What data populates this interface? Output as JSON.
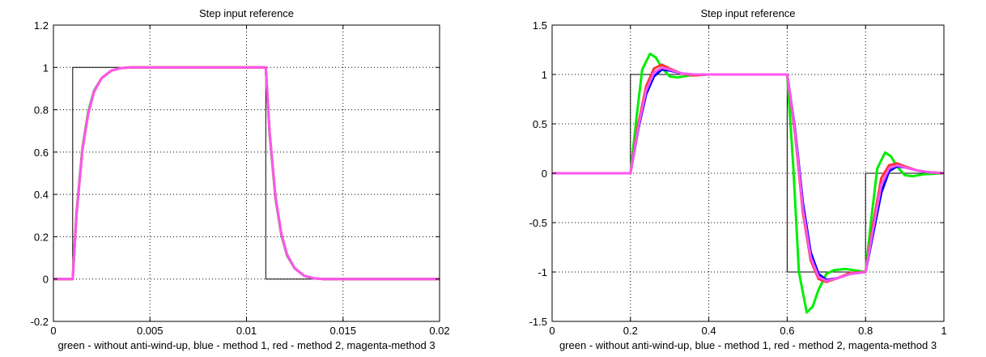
{
  "chart_data": [
    {
      "type": "line",
      "title": "Step input reference",
      "xlabel": "green - without anti-wind-up, blue - method 1, red - method 2, magenta-method 3",
      "ylabel": "",
      "xlim": [
        0,
        0.02
      ],
      "ylim": [
        -0.2,
        1.2
      ],
      "xticks": [
        0,
        0.005,
        0.01,
        0.015,
        0.02
      ],
      "xtick_labels": [
        "0",
        "0.005",
        "0.01",
        "0.015",
        "0.02"
      ],
      "yticks": [
        -0.2,
        0,
        0.2,
        0.4,
        0.6,
        0.8,
        1,
        1.2
      ],
      "ytick_labels": [
        "-0.2",
        "0",
        "0.2",
        "0.4",
        "0.6",
        "0.8",
        "1",
        "1.2"
      ],
      "grid": true,
      "series": [
        {
          "color": "#000000",
          "width": 1,
          "x": [
            0,
            0.001,
            0.001,
            0.011,
            0.011,
            0.02
          ],
          "y": [
            0,
            0,
            1,
            1,
            0,
            0
          ]
        },
        {
          "color": "#00ee00",
          "width": 3,
          "x": [
            0,
            0.001,
            0.0012,
            0.0015,
            0.0018,
            0.0021,
            0.0025,
            0.003,
            0.0035,
            0.004,
            0.011,
            0.0112,
            0.0115,
            0.0118,
            0.0121,
            0.0125,
            0.013,
            0.0135,
            0.014,
            0.02
          ],
          "y": [
            0,
            0,
            0.32,
            0.62,
            0.79,
            0.89,
            0.95,
            0.985,
            0.997,
            1,
            1,
            0.68,
            0.38,
            0.21,
            0.11,
            0.05,
            0.015,
            0.003,
            0,
            0
          ]
        },
        {
          "color": "#0000ff",
          "width": 2,
          "x": [
            0,
            0.001,
            0.0012,
            0.0015,
            0.0018,
            0.0021,
            0.0025,
            0.003,
            0.0035,
            0.004,
            0.011,
            0.0112,
            0.0115,
            0.0118,
            0.0121,
            0.0125,
            0.013,
            0.0135,
            0.014,
            0.02
          ],
          "y": [
            0,
            0,
            0.3,
            0.6,
            0.78,
            0.88,
            0.95,
            0.985,
            0.997,
            1,
            1,
            0.7,
            0.4,
            0.22,
            0.12,
            0.05,
            0.015,
            0.003,
            0,
            0
          ]
        },
        {
          "color": "#ff3030",
          "width": 3,
          "x": [
            0,
            0.001,
            0.0012,
            0.0015,
            0.0018,
            0.0021,
            0.0025,
            0.003,
            0.0035,
            0.004,
            0.011,
            0.0112,
            0.0115,
            0.0118,
            0.0121,
            0.0125,
            0.013,
            0.0135,
            0.014,
            0.02
          ],
          "y": [
            0,
            0,
            0.31,
            0.61,
            0.78,
            0.885,
            0.95,
            0.985,
            0.997,
            1,
            1,
            0.69,
            0.39,
            0.215,
            0.115,
            0.05,
            0.015,
            0.003,
            0,
            0
          ]
        },
        {
          "color": "#ff55ee",
          "width": 3,
          "x": [
            0,
            0.001,
            0.0012,
            0.0015,
            0.0018,
            0.0021,
            0.0025,
            0.003,
            0.0035,
            0.004,
            0.011,
            0.0112,
            0.0115,
            0.0118,
            0.0121,
            0.0125,
            0.013,
            0.0135,
            0.014,
            0.02
          ],
          "y": [
            0,
            0,
            0.31,
            0.61,
            0.78,
            0.885,
            0.95,
            0.985,
            0.997,
            1,
            1,
            0.69,
            0.39,
            0.215,
            0.115,
            0.05,
            0.015,
            0.003,
            0,
            0
          ]
        }
      ]
    },
    {
      "type": "line",
      "title": "Step input reference",
      "xlabel": "green - without anti-wind-up, blue - method 1, red - method 2, magenta-method 3",
      "ylabel": "",
      "xlim": [
        0,
        1
      ],
      "ylim": [
        -1.5,
        1.5
      ],
      "xticks": [
        0,
        0.2,
        0.4,
        0.6,
        0.8,
        1
      ],
      "xtick_labels": [
        "0",
        "0.2",
        "0.4",
        "0.6",
        "0.8",
        "1"
      ],
      "yticks": [
        -1.5,
        -1,
        -0.5,
        0,
        0.5,
        1,
        1.5
      ],
      "ytick_labels": [
        "-1.5",
        "-1",
        "-0.5",
        "0",
        "0.5",
        "1",
        "1.5"
      ],
      "grid": true,
      "series": [
        {
          "color": "#000000",
          "width": 1,
          "x": [
            0,
            0.2,
            0.2,
            0.6,
            0.6,
            0.8,
            0.8,
            1
          ],
          "y": [
            0,
            0,
            1,
            1,
            -1,
            -1,
            0,
            0
          ]
        },
        {
          "color": "#00ee00",
          "width": 3,
          "x": [
            0,
            0.2,
            0.215,
            0.23,
            0.25,
            0.265,
            0.28,
            0.3,
            0.32,
            0.35,
            0.4,
            0.6,
            0.615,
            0.63,
            0.65,
            0.665,
            0.68,
            0.7,
            0.72,
            0.75,
            0.8,
            0.815,
            0.83,
            0.85,
            0.865,
            0.88,
            0.9,
            0.92,
            0.95,
            1
          ],
          "y": [
            0,
            0,
            0.55,
            1.05,
            1.21,
            1.17,
            1.07,
            0.98,
            0.97,
            0.99,
            1,
            1,
            0.1,
            -1.0,
            -1.41,
            -1.35,
            -1.18,
            -1.02,
            -0.98,
            -0.97,
            -1,
            -0.45,
            0.05,
            0.21,
            0.17,
            0.07,
            -0.02,
            -0.03,
            -0.01,
            0
          ]
        },
        {
          "color": "#0000ff",
          "width": 3,
          "x": [
            0,
            0.2,
            0.22,
            0.24,
            0.26,
            0.28,
            0.3,
            0.33,
            0.36,
            0.4,
            0.6,
            0.62,
            0.64,
            0.66,
            0.68,
            0.7,
            0.73,
            0.76,
            0.8,
            0.82,
            0.84,
            0.86,
            0.88,
            0.9,
            0.93,
            0.96,
            1
          ],
          "y": [
            0,
            0,
            0.45,
            0.8,
            0.98,
            1.05,
            1.04,
            1.01,
            1.0,
            1,
            1,
            0.45,
            -0.3,
            -0.8,
            -1.02,
            -1.08,
            -1.06,
            -1.02,
            -1,
            -0.6,
            -0.2,
            0.02,
            0.07,
            0.06,
            0.03,
            0.01,
            0
          ]
        },
        {
          "color": "#ff3030",
          "width": 3,
          "x": [
            0,
            0.2,
            0.22,
            0.24,
            0.26,
            0.28,
            0.3,
            0.33,
            0.36,
            0.4,
            0.6,
            0.62,
            0.64,
            0.66,
            0.68,
            0.7,
            0.73,
            0.76,
            0.8,
            0.82,
            0.84,
            0.86,
            0.88,
            0.9,
            0.93,
            0.96,
            1
          ],
          "y": [
            0,
            0,
            0.5,
            0.88,
            1.06,
            1.1,
            1.06,
            1.01,
            0.99,
            1,
            1,
            0.4,
            -0.4,
            -0.88,
            -1.07,
            -1.1,
            -1.06,
            -1.01,
            -1,
            -0.5,
            -0.05,
            0.08,
            0.1,
            0.07,
            0.03,
            0.01,
            0
          ]
        },
        {
          "color": "#ff55ee",
          "width": 3,
          "x": [
            0,
            0.2,
            0.22,
            0.24,
            0.26,
            0.28,
            0.3,
            0.33,
            0.36,
            0.4,
            0.6,
            0.62,
            0.64,
            0.66,
            0.68,
            0.7,
            0.73,
            0.76,
            0.8,
            0.82,
            0.84,
            0.86,
            0.88,
            0.9,
            0.93,
            0.96,
            1
          ],
          "y": [
            0,
            0,
            0.47,
            0.84,
            1.02,
            1.07,
            1.05,
            1.01,
            1.0,
            1,
            1,
            0.43,
            -0.36,
            -0.85,
            -1.05,
            -1.09,
            -1.06,
            -1.02,
            -1,
            -0.55,
            -0.12,
            0.05,
            0.08,
            0.06,
            0.03,
            0.01,
            0
          ]
        }
      ]
    }
  ]
}
